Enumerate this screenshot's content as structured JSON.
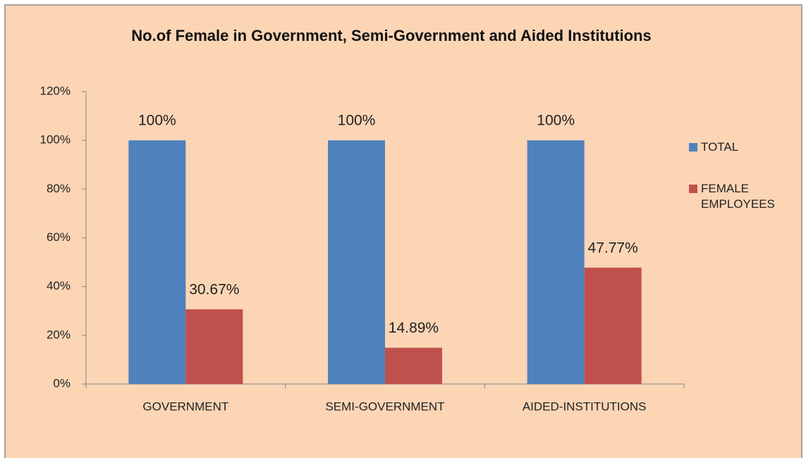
{
  "chart_data": {
    "type": "bar",
    "title": "No.of Female in Government, Semi-Government and Aided Institutions",
    "categories": [
      "GOVERNMENT",
      "SEMI-GOVERNMENT",
      "AIDED-INSTITUTIONS"
    ],
    "series": [
      {
        "name": "TOTAL",
        "color": "#4f81bd",
        "values": [
          100,
          100,
          100
        ],
        "value_labels": [
          "100%",
          "100%",
          "100%"
        ]
      },
      {
        "name": "FEMALE EMPLOYEES",
        "color": "#c0504d",
        "values": [
          30.67,
          14.89,
          47.77
        ],
        "value_labels": [
          "30.67%",
          "14.89%",
          "47.77%"
        ]
      }
    ],
    "ylim": [
      0,
      120
    ],
    "yticks": [
      {
        "value": 0,
        "label": "0%"
      },
      {
        "value": 20,
        "label": "20%"
      },
      {
        "value": 40,
        "label": "40%"
      },
      {
        "value": 60,
        "label": "60%"
      },
      {
        "value": 80,
        "label": "80%"
      },
      {
        "value": 100,
        "label": "100%"
      },
      {
        "value": 120,
        "label": "120%"
      }
    ],
    "grid": false,
    "legend": "right"
  }
}
